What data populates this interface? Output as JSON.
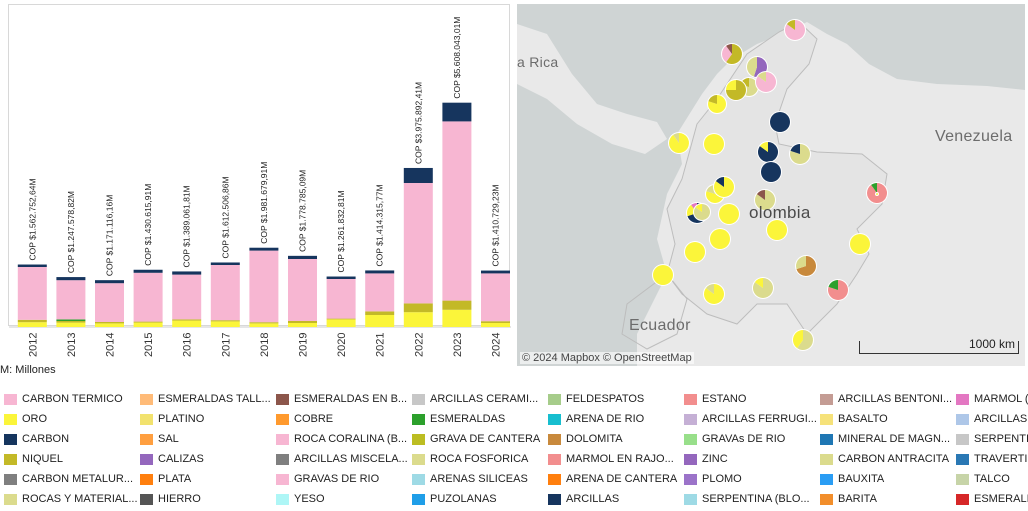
{
  "chart_data": {
    "type": "bar",
    "stacked": true,
    "categories": [
      "2012",
      "2013",
      "2014",
      "2015",
      "2016",
      "2017",
      "2018",
      "2019",
      "2020",
      "2021",
      "2022",
      "2023",
      "2024"
    ],
    "totals_labels": [
      "COP $1.562.752,64M",
      "COP $1.247.578,82M",
      "COP $1.171.116,16M",
      "COP $1.430.615,91M",
      "COP $1.389.061,81M",
      "COP $1.612.506,86M",
      "COP $1.981.679,91M",
      "COP $1.778.785,09M",
      "COP $1.261.832,81M",
      "COP $1.414.315,77M",
      "COP $3.975.892,41M",
      "COP $5.608.043,01M",
      "COP $1.410.729,23M"
    ],
    "series": [
      {
        "name": "ORO",
        "color": "#fbf53a",
        "values": [
          120,
          110,
          90,
          110,
          160,
          140,
          90,
          100,
          190,
          300,
          370,
          430,
          100
        ]
      },
      {
        "name": "NIQUEL",
        "color": "#c3b927",
        "values": [
          60,
          40,
          35,
          25,
          30,
          30,
          30,
          50,
          20,
          90,
          220,
          230,
          45
        ]
      },
      {
        "name": "ESMERALDAS",
        "color": "#2ca02c",
        "values": [
          0,
          40,
          0,
          0,
          0,
          0,
          0,
          0,
          0,
          0,
          0,
          0,
          0
        ]
      },
      {
        "name": "CARBON TERMICO",
        "color": "#f7b6d2",
        "values": [
          1320,
          980,
          970,
          1220,
          1120,
          1380,
          1790,
          1550,
          990,
          950,
          3010,
          4480,
          1195
        ]
      },
      {
        "name": "CARBON",
        "color": "#16355e",
        "values": [
          62,
          78,
          76,
          76,
          79,
          63,
          72,
          79,
          62,
          74,
          376,
          468,
          71
        ]
      }
    ],
    "ylim": [
      0,
      5800
    ],
    "units_label": "M: Millones"
  },
  "map": {
    "labels": {
      "venezuela": "Venezuela",
      "colombia": "olombia",
      "ecuador": "Ecuador",
      "costa_rica": "a Rica"
    },
    "attribution": "© 2024 Mapbox © OpenStreetMap",
    "scale_label": "1000 km",
    "pies": [
      {
        "c": [
          "#f7b6d2",
          "#c3b927"
        ],
        "v": [
          85,
          15
        ]
      },
      {
        "c": [
          "#c3b927",
          "#f7b6d2",
          "#8c564b"
        ],
        "v": [
          60,
          30,
          10
        ]
      },
      {
        "c": [
          "#9467bd",
          "#dbdb8d"
        ],
        "v": [
          55,
          45
        ]
      },
      {
        "c": [
          "#dbdb8d",
          "#c3b927"
        ],
        "v": [
          80,
          20
        ]
      },
      {
        "c": [
          "#f7b6d2",
          "#dbdb8d"
        ],
        "v": [
          85,
          15
        ]
      },
      {
        "c": [
          "#fbf53a",
          "#c3b927"
        ],
        "v": [
          80,
          20
        ]
      },
      {
        "c": [
          "#c3b927",
          "#fbf53a"
        ],
        "v": [
          75,
          25
        ]
      },
      {
        "c": [
          "#16355e"
        ],
        "v": [
          100
        ]
      },
      {
        "c": [
          "#16355e",
          "#fbf53a"
        ],
        "v": [
          85,
          15
        ]
      },
      {
        "c": [
          "#dbdb8d",
          "#16355e"
        ],
        "v": [
          80,
          20
        ]
      },
      {
        "c": [
          "#fbf53a",
          "#dbdb8d"
        ],
        "v": [
          90,
          10
        ]
      },
      {
        "c": [
          "#fbf53a"
        ],
        "v": [
          100
        ]
      },
      {
        "c": [
          "#16355e"
        ],
        "v": [
          100
        ]
      },
      {
        "c": [
          "#dbdb8d",
          "#8c564b"
        ],
        "v": [
          85,
          15
        ]
      },
      {
        "c": [
          "#fbf53a",
          "#dbdb8d"
        ],
        "v": [
          80,
          20
        ]
      },
      {
        "c": [
          "#16355e",
          "#fbf53a",
          "#e377c2"
        ],
        "v": [
          70,
          20,
          10
        ]
      },
      {
        "c": [
          "#fbf53a"
        ],
        "v": [
          100
        ]
      },
      {
        "c": [
          "#f28e8e",
          "#2ca02c"
        ],
        "v": [
          90,
          10
        ]
      },
      {
        "c": [
          "#fbf53a",
          "#16355e"
        ],
        "v": [
          85,
          15
        ]
      },
      {
        "c": [
          "#dbdb8d",
          "#fbf53a"
        ],
        "v": [
          85,
          15
        ]
      },
      {
        "c": [
          "#fbf53a"
        ],
        "v": [
          100
        ]
      },
      {
        "c": [
          "#fbf53a"
        ],
        "v": [
          100
        ]
      },
      {
        "c": [
          "#fbf53a"
        ],
        "v": [
          100
        ]
      },
      {
        "c": [
          "#c8893c",
          "#dbdb8d"
        ],
        "v": [
          70,
          30
        ]
      },
      {
        "c": [
          "#fbf53a"
        ],
        "v": [
          100
        ]
      },
      {
        "c": [
          "#dbdb8d",
          "#fbf53a"
        ],
        "v": [
          85,
          15
        ]
      },
      {
        "c": [
          "#f28e8e",
          "#2ca02c"
        ],
        "v": [
          80,
          20
        ]
      },
      {
        "c": [
          "#fbf53a"
        ],
        "v": [
          100
        ]
      },
      {
        "c": [
          "#fbf53a",
          "#dbdb8d"
        ],
        "v": [
          85,
          15
        ]
      },
      {
        "c": [
          "#dbdb8d",
          "#fbf53a"
        ],
        "v": [
          60,
          40
        ]
      },
      {
        "c": [
          "#fbf53a",
          "#dbdb8d"
        ],
        "v": [
          80,
          20
        ]
      }
    ]
  },
  "legend": [
    [
      {
        "name": "CARBON TERMICO",
        "color": "#f7b6d2"
      },
      {
        "name": "ORO",
        "color": "#fbf53a"
      },
      {
        "name": "CARBON",
        "color": "#16355e"
      },
      {
        "name": "NIQUEL",
        "color": "#c3b927"
      },
      {
        "name": "CARBON METALUR...",
        "color": "#7f7f7f"
      },
      {
        "name": "ROCAS Y MATERIAL...",
        "color": "#dbdb8d"
      }
    ],
    [
      {
        "name": "ESMERALDAS TALL...",
        "color": "#ffbb78"
      },
      {
        "name": "PLATINO",
        "color": "#f2e26e"
      },
      {
        "name": "SAL",
        "color": "#ff9f40"
      },
      {
        "name": "CALIZAS",
        "color": "#9467bd"
      },
      {
        "name": "PLATA",
        "color": "#ff7f0e"
      },
      {
        "name": "HIERRO",
        "color": "#555555"
      }
    ],
    [
      {
        "name": "ESMERALDAS EN B...",
        "color": "#8c564b"
      },
      {
        "name": "COBRE",
        "color": "#ff9a2e"
      },
      {
        "name": "ROCA CORALINA (B...",
        "color": "#f7b6d2"
      },
      {
        "name": "ARCILLAS MISCELA...",
        "color": "#7f7f7f"
      },
      {
        "name": "GRAVAS DE RIO",
        "color": "#f7b6d2"
      },
      {
        "name": "YESO",
        "color": "#aef6f6"
      }
    ],
    [
      {
        "name": "ARCILLAS CERAMI...",
        "color": "#c7c7c7"
      },
      {
        "name": "ESMERALDAS",
        "color": "#2ca02c"
      },
      {
        "name": "GRAVA DE CANTERA",
        "color": "#bcbd22"
      },
      {
        "name": "ROCA FOSFORICA",
        "color": "#dbdb8d"
      },
      {
        "name": "ARENAS SILICEAS",
        "color": "#9edae5"
      },
      {
        "name": "PUZOLANAS",
        "color": "#1f9ee8"
      }
    ],
    [
      {
        "name": "FELDESPATOS",
        "color": "#a6cc8a"
      },
      {
        "name": "ARENA DE RIO",
        "color": "#17becf"
      },
      {
        "name": "DOLOMITA",
        "color": "#c8893c"
      },
      {
        "name": "MARMOL EN RAJO...",
        "color": "#f28e8e"
      },
      {
        "name": "ARENA DE CANTERA",
        "color": "#ff7f0e"
      },
      {
        "name": "ARCILLAS",
        "color": "#16355e"
      }
    ],
    [
      {
        "name": "ESTANO",
        "color": "#f28e8e"
      },
      {
        "name": "ARCILLAS FERRUGI...",
        "color": "#c5b0d5"
      },
      {
        "name": "GRAVAs DE RIO",
        "color": "#98df8a"
      },
      {
        "name": "ZINC",
        "color": "#9467bd"
      },
      {
        "name": "PLOMO",
        "color": "#9b73c9"
      },
      {
        "name": "SERPENTINA (BLO...",
        "color": "#9edae5"
      }
    ],
    [
      {
        "name": "ARCILLAS BENTONI...",
        "color": "#c49c94"
      },
      {
        "name": "BASALTO",
        "color": "#f6e27a"
      },
      {
        "name": "MINERAL DE MAGN...",
        "color": "#1f77b4"
      },
      {
        "name": "CARBON ANTRACITA",
        "color": "#dbdb8d"
      },
      {
        "name": "BAUXITA",
        "color": "#2a9df4"
      },
      {
        "name": "BARITA",
        "color": "#f28e2b"
      }
    ],
    [
      {
        "name": "MARMOL (",
        "color": "#e377c2"
      },
      {
        "name": "ARCILLAS",
        "color": "#aec7e8"
      },
      {
        "name": "SERPENTI",
        "color": "#c7c7c7"
      },
      {
        "name": "TRAVERTI",
        "color": "#2a78b4"
      },
      {
        "name": "TALCO",
        "color": "#c7d4a8"
      },
      {
        "name": "ESMERALI",
        "color": "#d62728"
      }
    ]
  ]
}
